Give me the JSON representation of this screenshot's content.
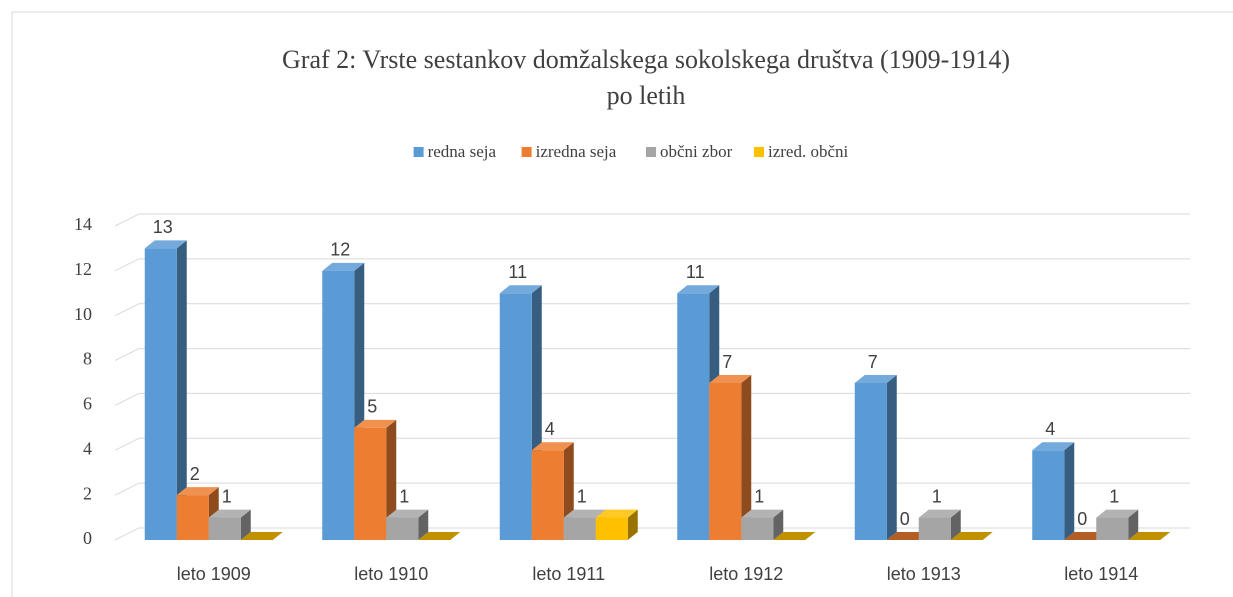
{
  "chart_data": {
    "type": "bar3d",
    "title": [
      "Graf 2: Vrste sestankov domžalskega sokolskega društva (1909-1914)",
      "po letih"
    ],
    "categories": [
      "leto 1909",
      "leto 1910",
      "leto 1911",
      "leto 1912",
      "leto 1913",
      "leto 1914"
    ],
    "series": [
      {
        "name": "redna seja",
        "color": "#5b9bd5",
        "values": [
          13,
          12,
          11,
          11,
          7,
          4
        ],
        "labels": true
      },
      {
        "name": "izredna seja",
        "color": "#ed7d31",
        "values": [
          2,
          5,
          4,
          7,
          0,
          0
        ],
        "labels": true
      },
      {
        "name": "občni zbor",
        "color": "#a5a5a5",
        "values": [
          1,
          1,
          1,
          1,
          1,
          1
        ],
        "labels": true
      },
      {
        "name": "izred. občni",
        "color": "#ffc000",
        "values": [
          0,
          0,
          1,
          0,
          0,
          0
        ],
        "labels": false
      }
    ],
    "ylim": [
      0,
      14
    ],
    "yticks": [
      0,
      2,
      4,
      6,
      8,
      10,
      12,
      14
    ],
    "grid": true,
    "legend": "top"
  }
}
